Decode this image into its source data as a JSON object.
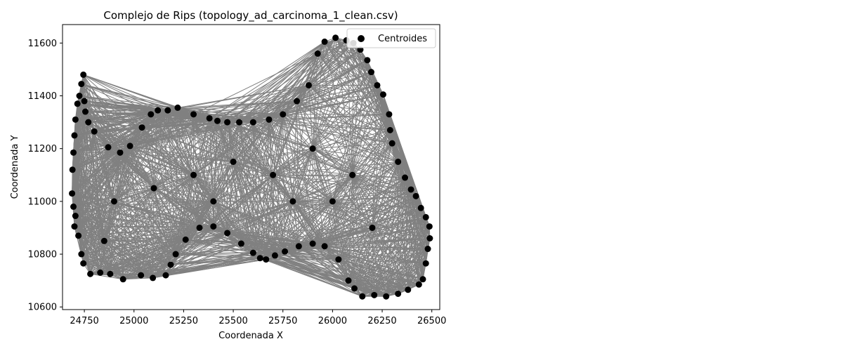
{
  "chart_data": {
    "type": "scatter",
    "title": "Complejo de Rips (topology_ad_carcinoma_1_clean.csv)",
    "xlabel": "Coordenada X",
    "ylabel": "Coordenada Y",
    "xlim": [
      24640,
      26540
    ],
    "ylim": [
      10590,
      11670
    ],
    "xticks": [
      24750,
      25000,
      25250,
      25500,
      25750,
      26000,
      26250,
      26500
    ],
    "yticks": [
      10600,
      10800,
      11000,
      11200,
      11400,
      11600
    ],
    "grid": false,
    "legend": {
      "location": "top-right",
      "entries": [
        "Centroides"
      ]
    },
    "colors": {
      "points": "#000000",
      "edges": "#808080"
    },
    "series": [
      {
        "name": "Centroides",
        "points": [
          [
            24745,
            11480
          ],
          [
            24735,
            11445
          ],
          [
            24725,
            11400
          ],
          [
            24715,
            11370
          ],
          [
            24705,
            11310
          ],
          [
            24700,
            11250
          ],
          [
            24695,
            11185
          ],
          [
            24690,
            11120
          ],
          [
            24688,
            11030
          ],
          [
            24695,
            10980
          ],
          [
            24705,
            10945
          ],
          [
            24700,
            10905
          ],
          [
            24720,
            10870
          ],
          [
            24735,
            10800
          ],
          [
            24745,
            10765
          ],
          [
            24780,
            10725
          ],
          [
            24830,
            10730
          ],
          [
            24880,
            10725
          ],
          [
            24945,
            10705
          ],
          [
            25035,
            10720
          ],
          [
            25095,
            10710
          ],
          [
            25160,
            10720
          ],
          [
            25185,
            10760
          ],
          [
            25210,
            10800
          ],
          [
            25260,
            10855
          ],
          [
            25330,
            10900
          ],
          [
            25400,
            10905
          ],
          [
            25470,
            10880
          ],
          [
            25540,
            10840
          ],
          [
            25600,
            10805
          ],
          [
            25635,
            10785
          ],
          [
            25665,
            10780
          ],
          [
            25710,
            10795
          ],
          [
            25760,
            10810
          ],
          [
            25830,
            10830
          ],
          [
            25900,
            10840
          ],
          [
            25960,
            10830
          ],
          [
            26030,
            10780
          ],
          [
            26080,
            10700
          ],
          [
            26110,
            10670
          ],
          [
            26150,
            10640
          ],
          [
            26210,
            10645
          ],
          [
            26270,
            10640
          ],
          [
            26330,
            10650
          ],
          [
            26380,
            10665
          ],
          [
            26435,
            10685
          ],
          [
            26455,
            10705
          ],
          [
            26470,
            10765
          ],
          [
            26480,
            10820
          ],
          [
            26490,
            10860
          ],
          [
            26488,
            10905
          ],
          [
            26470,
            10940
          ],
          [
            26445,
            10975
          ],
          [
            26420,
            11020
          ],
          [
            26395,
            11045
          ],
          [
            26365,
            11090
          ],
          [
            26330,
            11150
          ],
          [
            26300,
            11220
          ],
          [
            26290,
            11270
          ],
          [
            26285,
            11330
          ],
          [
            26255,
            11405
          ],
          [
            26225,
            11440
          ],
          [
            26195,
            11490
          ],
          [
            26175,
            11535
          ],
          [
            26140,
            11575
          ],
          [
            26105,
            11600
          ],
          [
            26070,
            11610
          ],
          [
            26015,
            11620
          ],
          [
            25960,
            11605
          ],
          [
            25925,
            11560
          ],
          [
            25880,
            11440
          ],
          [
            25820,
            11380
          ],
          [
            25750,
            11330
          ],
          [
            25680,
            11310
          ],
          [
            25600,
            11300
          ],
          [
            25530,
            11300
          ],
          [
            25470,
            11300
          ],
          [
            25420,
            11305
          ],
          [
            25380,
            11315
          ],
          [
            25300,
            11330
          ],
          [
            25220,
            11355
          ],
          [
            25170,
            11345
          ],
          [
            25120,
            11345
          ],
          [
            25085,
            11330
          ],
          [
            25040,
            11280
          ],
          [
            24980,
            11210
          ],
          [
            24930,
            11185
          ],
          [
            24870,
            11205
          ],
          [
            24800,
            11265
          ],
          [
            24770,
            11300
          ],
          [
            24755,
            11340
          ],
          [
            24750,
            11380
          ],
          [
            24900,
            11000
          ],
          [
            25100,
            11050
          ],
          [
            25300,
            11100
          ],
          [
            25500,
            11150
          ],
          [
            25700,
            11100
          ],
          [
            25900,
            11200
          ],
          [
            26100,
            11100
          ],
          [
            26200,
            10900
          ],
          [
            26000,
            11000
          ],
          [
            25800,
            11000
          ],
          [
            25400,
            11000
          ],
          [
            24850,
            10850
          ]
        ]
      }
    ]
  }
}
